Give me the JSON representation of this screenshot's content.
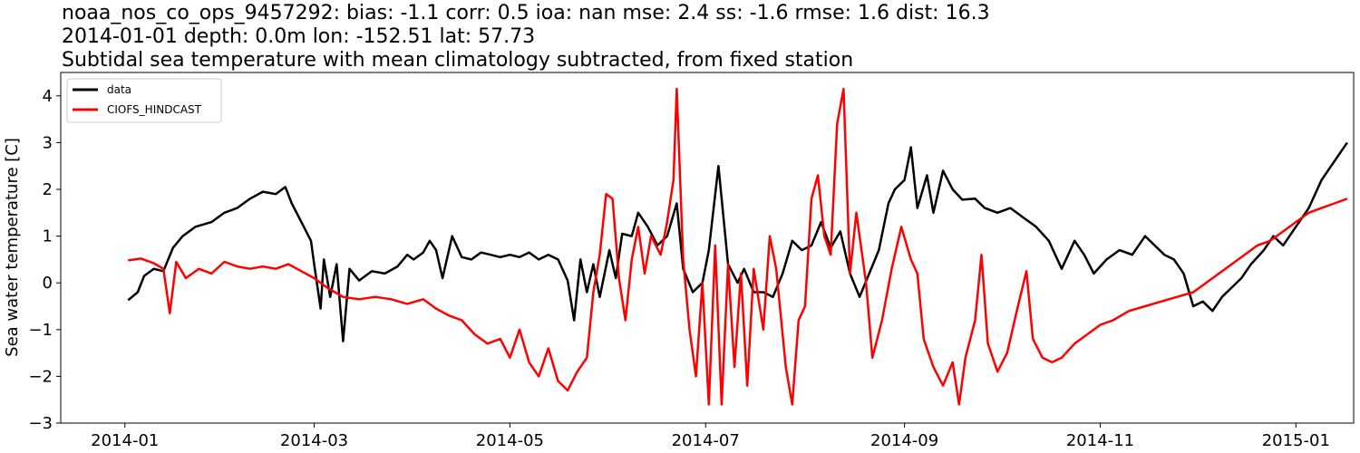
{
  "chart_data": {
    "type": "line",
    "title_lines": [
      "noaa_nos_co_ops_9457292: bias: -1.1  corr: 0.5  ioa: nan  mse: 2.4  ss: -1.6  rmse: 1.6  dist: 16.3",
      "2014-01-01 depth: 0.0m lon: -152.51 lat: 57.73",
      "Subtidal sea temperature with mean climatology subtracted, from fixed station"
    ],
    "xlabel": "",
    "ylabel": "Sea water temperature [C]",
    "x_ticks": [
      "2014-01",
      "2014-03",
      "2014-05",
      "2014-07",
      "2014-09",
      "2014-11",
      "2015-01"
    ],
    "y_ticks": [
      "−3",
      "−2",
      "−1",
      "0",
      "1",
      "2",
      "3",
      "4"
    ],
    "xlim": [
      "2013-12-12",
      "2015-01-19"
    ],
    "ylim": [
      -3.0,
      4.5
    ],
    "grid": false,
    "legend_position": "top-left",
    "series": [
      {
        "name": "data",
        "color": "#000000",
        "points": [
          [
            "2014-01-02",
            -0.37
          ],
          [
            "2014-01-05",
            -0.2
          ],
          [
            "2014-01-07",
            0.15
          ],
          [
            "2014-01-10",
            0.3
          ],
          [
            "2014-01-13",
            0.25
          ],
          [
            "2014-01-16",
            0.75
          ],
          [
            "2014-01-19",
            1.0
          ],
          [
            "2014-01-23",
            1.2
          ],
          [
            "2014-01-28",
            1.3
          ],
          [
            "2014-02-01",
            1.5
          ],
          [
            "2014-02-05",
            1.6
          ],
          [
            "2014-02-09",
            1.8
          ],
          [
            "2014-02-13",
            1.95
          ],
          [
            "2014-02-17",
            1.9
          ],
          [
            "2014-02-20",
            2.05
          ],
          [
            "2014-02-22",
            1.7
          ],
          [
            "2014-02-25",
            1.3
          ],
          [
            "2014-02-28",
            0.9
          ],
          [
            "2014-03-01",
            0.4
          ],
          [
            "2014-03-03",
            -0.55
          ],
          [
            "2014-03-04",
            0.5
          ],
          [
            "2014-03-06",
            -0.3
          ],
          [
            "2014-03-08",
            0.4
          ],
          [
            "2014-03-10",
            -1.25
          ],
          [
            "2014-03-12",
            0.3
          ],
          [
            "2014-03-15",
            0.05
          ],
          [
            "2014-03-19",
            0.25
          ],
          [
            "2014-03-23",
            0.2
          ],
          [
            "2014-03-27",
            0.35
          ],
          [
            "2014-03-30",
            0.6
          ],
          [
            "2014-04-01",
            0.5
          ],
          [
            "2014-04-04",
            0.65
          ],
          [
            "2014-04-06",
            0.9
          ],
          [
            "2014-04-08",
            0.7
          ],
          [
            "2014-04-10",
            0.1
          ],
          [
            "2014-04-13",
            1.0
          ],
          [
            "2014-04-16",
            0.55
          ],
          [
            "2014-04-19",
            0.5
          ],
          [
            "2014-04-22",
            0.65
          ],
          [
            "2014-04-25",
            0.6
          ],
          [
            "2014-04-28",
            0.55
          ],
          [
            "2014-05-01",
            0.6
          ],
          [
            "2014-05-04",
            0.55
          ],
          [
            "2014-05-07",
            0.65
          ],
          [
            "2014-05-10",
            0.5
          ],
          [
            "2014-05-13",
            0.6
          ],
          [
            "2014-05-16",
            0.5
          ],
          [
            "2014-05-19",
            0.05
          ],
          [
            "2014-05-21",
            -0.8
          ],
          [
            "2014-05-23",
            0.5
          ],
          [
            "2014-05-25",
            -0.2
          ],
          [
            "2014-05-27",
            0.4
          ],
          [
            "2014-05-29",
            -0.3
          ],
          [
            "2014-06-01",
            0.7
          ],
          [
            "2014-06-03",
            0.1
          ],
          [
            "2014-06-05",
            1.05
          ],
          [
            "2014-06-08",
            1.0
          ],
          [
            "2014-06-10",
            1.5
          ],
          [
            "2014-06-13",
            1.2
          ],
          [
            "2014-06-16",
            0.8
          ],
          [
            "2014-06-19",
            1.0
          ],
          [
            "2014-06-22",
            1.7
          ],
          [
            "2014-06-24",
            0.3
          ],
          [
            "2014-06-27",
            -0.2
          ],
          [
            "2014-06-30",
            0.0
          ],
          [
            "2014-07-02",
            0.7
          ],
          [
            "2014-07-05",
            2.5
          ],
          [
            "2014-07-08",
            0.4
          ],
          [
            "2014-07-11",
            0.0
          ],
          [
            "2014-07-13",
            0.3
          ],
          [
            "2014-07-16",
            -0.2
          ],
          [
            "2014-07-19",
            -0.2
          ],
          [
            "2014-07-22",
            -0.3
          ],
          [
            "2014-07-25",
            0.2
          ],
          [
            "2014-07-28",
            0.9
          ],
          [
            "2014-07-31",
            0.7
          ],
          [
            "2014-08-03",
            0.8
          ],
          [
            "2014-08-06",
            1.3
          ],
          [
            "2014-08-09",
            0.75
          ],
          [
            "2014-08-12",
            1.1
          ],
          [
            "2014-08-15",
            0.2
          ],
          [
            "2014-08-18",
            -0.3
          ],
          [
            "2014-08-21",
            0.2
          ],
          [
            "2014-08-24",
            0.7
          ],
          [
            "2014-08-27",
            1.7
          ],
          [
            "2014-08-29",
            2.0
          ],
          [
            "2014-09-01",
            2.2
          ],
          [
            "2014-09-03",
            2.9
          ],
          [
            "2014-09-05",
            1.6
          ],
          [
            "2014-09-08",
            2.3
          ],
          [
            "2014-09-10",
            1.5
          ],
          [
            "2014-09-13",
            2.4
          ],
          [
            "2014-09-16",
            2.0
          ],
          [
            "2014-09-19",
            1.78
          ],
          [
            "2014-09-23",
            1.8
          ],
          [
            "2014-09-26",
            1.6
          ],
          [
            "2014-09-30",
            1.5
          ],
          [
            "2014-10-04",
            1.6
          ],
          [
            "2014-10-08",
            1.4
          ],
          [
            "2014-10-12",
            1.2
          ],
          [
            "2014-10-16",
            0.9
          ],
          [
            "2014-10-20",
            0.3
          ],
          [
            "2014-10-24",
            0.9
          ],
          [
            "2014-10-27",
            0.6
          ],
          [
            "2014-10-30",
            0.2
          ],
          [
            "2014-11-03",
            0.5
          ],
          [
            "2014-11-07",
            0.7
          ],
          [
            "2014-11-11",
            0.6
          ],
          [
            "2014-11-15",
            1.0
          ],
          [
            "2014-11-18",
            0.8
          ],
          [
            "2014-11-21",
            0.6
          ],
          [
            "2014-11-24",
            0.5
          ],
          [
            "2014-11-27",
            0.2
          ],
          [
            "2014-11-30",
            -0.5
          ],
          [
            "2014-12-03",
            -0.4
          ],
          [
            "2014-12-06",
            -0.6
          ],
          [
            "2014-12-09",
            -0.3
          ],
          [
            "2014-12-12",
            -0.1
          ],
          [
            "2014-12-15",
            0.1
          ],
          [
            "2014-12-18",
            0.4
          ],
          [
            "2014-12-22",
            0.7
          ],
          [
            "2014-12-25",
            1.0
          ],
          [
            "2014-12-28",
            0.8
          ],
          [
            "2015-01-01",
            1.2
          ],
          [
            "2015-01-05",
            1.6
          ],
          [
            "2015-01-09",
            2.2
          ],
          [
            "2015-01-12",
            2.5
          ],
          [
            "2015-01-15",
            2.8
          ],
          [
            "2015-01-17",
            3.0
          ]
        ]
      },
      {
        "name": "CIOFS_HINDCAST",
        "color": "#ff0000",
        "points": [
          [
            "2014-01-02",
            0.48
          ],
          [
            "2014-01-06",
            0.52
          ],
          [
            "2014-01-10",
            0.42
          ],
          [
            "2014-01-13",
            0.3
          ],
          [
            "2014-01-15",
            -0.65
          ],
          [
            "2014-01-17",
            0.45
          ],
          [
            "2014-01-20",
            0.1
          ],
          [
            "2014-01-24",
            0.3
          ],
          [
            "2014-01-28",
            0.2
          ],
          [
            "2014-02-01",
            0.45
          ],
          [
            "2014-02-05",
            0.35
          ],
          [
            "2014-02-09",
            0.3
          ],
          [
            "2014-02-13",
            0.35
          ],
          [
            "2014-02-17",
            0.3
          ],
          [
            "2014-02-21",
            0.4
          ],
          [
            "2014-02-25",
            0.25
          ],
          [
            "2014-03-01",
            0.1
          ],
          [
            "2014-03-05",
            -0.1
          ],
          [
            "2014-03-10",
            -0.3
          ],
          [
            "2014-03-15",
            -0.35
          ],
          [
            "2014-03-20",
            -0.3
          ],
          [
            "2014-03-25",
            -0.35
          ],
          [
            "2014-03-30",
            -0.45
          ],
          [
            "2014-04-04",
            -0.35
          ],
          [
            "2014-04-08",
            -0.55
          ],
          [
            "2014-04-12",
            -0.7
          ],
          [
            "2014-04-16",
            -0.8
          ],
          [
            "2014-04-20",
            -1.1
          ],
          [
            "2014-04-24",
            -1.3
          ],
          [
            "2014-04-28",
            -1.2
          ],
          [
            "2014-05-01",
            -1.6
          ],
          [
            "2014-05-04",
            -1.0
          ],
          [
            "2014-05-07",
            -1.7
          ],
          [
            "2014-05-10",
            -2.0
          ],
          [
            "2014-05-13",
            -1.4
          ],
          [
            "2014-05-16",
            -2.1
          ],
          [
            "2014-05-19",
            -2.3
          ],
          [
            "2014-05-22",
            -1.9
          ],
          [
            "2014-05-25",
            -1.6
          ],
          [
            "2014-05-27",
            -0.2
          ],
          [
            "2014-05-29",
            0.6
          ],
          [
            "2014-05-31",
            1.9
          ],
          [
            "2014-06-02",
            1.8
          ],
          [
            "2014-06-04",
            0.1
          ],
          [
            "2014-06-06",
            -0.8
          ],
          [
            "2014-06-08",
            0.5
          ],
          [
            "2014-06-10",
            1.2
          ],
          [
            "2014-06-12",
            0.2
          ],
          [
            "2014-06-14",
            1.0
          ],
          [
            "2014-06-17",
            0.6
          ],
          [
            "2014-06-19",
            1.3
          ],
          [
            "2014-06-21",
            2.2
          ],
          [
            "2014-06-22",
            4.15
          ],
          [
            "2014-06-24",
            0.5
          ],
          [
            "2014-06-26",
            -1.0
          ],
          [
            "2014-06-28",
            -2.0
          ],
          [
            "2014-06-30",
            0.0
          ],
          [
            "2014-07-02",
            -2.6
          ],
          [
            "2014-07-04",
            0.8
          ],
          [
            "2014-07-06",
            -2.6
          ],
          [
            "2014-07-08",
            0.4
          ],
          [
            "2014-07-10",
            -1.8
          ],
          [
            "2014-07-12",
            0.2
          ],
          [
            "2014-07-14",
            -2.2
          ],
          [
            "2014-07-16",
            0.3
          ],
          [
            "2014-07-19",
            -1.0
          ],
          [
            "2014-07-21",
            1.0
          ],
          [
            "2014-07-23",
            0.3
          ],
          [
            "2014-07-26",
            -1.8
          ],
          [
            "2014-07-28",
            -2.6
          ],
          [
            "2014-07-30",
            -0.8
          ],
          [
            "2014-08-01",
            -0.5
          ],
          [
            "2014-08-03",
            1.8
          ],
          [
            "2014-08-05",
            2.3
          ],
          [
            "2014-08-07",
            1.0
          ],
          [
            "2014-08-09",
            0.6
          ],
          [
            "2014-08-11",
            3.4
          ],
          [
            "2014-08-13",
            4.15
          ],
          [
            "2014-08-15",
            0.2
          ],
          [
            "2014-08-17",
            1.5
          ],
          [
            "2014-08-20",
            0.0
          ],
          [
            "2014-08-22",
            -1.6
          ],
          [
            "2014-08-25",
            -0.8
          ],
          [
            "2014-08-28",
            0.3
          ],
          [
            "2014-08-31",
            1.2
          ],
          [
            "2014-09-03",
            0.5
          ],
          [
            "2014-09-05",
            0.2
          ],
          [
            "2014-09-07",
            -1.2
          ],
          [
            "2014-09-10",
            -1.8
          ],
          [
            "2014-09-13",
            -2.2
          ],
          [
            "2014-09-16",
            -1.7
          ],
          [
            "2014-09-18",
            -2.6
          ],
          [
            "2014-09-20",
            -1.6
          ],
          [
            "2014-09-23",
            -0.8
          ],
          [
            "2014-09-25",
            0.6
          ],
          [
            "2014-09-27",
            -1.3
          ],
          [
            "2014-09-30",
            -1.9
          ],
          [
            "2014-10-03",
            -1.5
          ],
          [
            "2014-10-06",
            -0.6
          ],
          [
            "2014-10-09",
            0.25
          ],
          [
            "2014-10-11",
            -1.2
          ],
          [
            "2014-10-14",
            -1.6
          ],
          [
            "2014-10-17",
            -1.7
          ],
          [
            "2014-10-20",
            -1.6
          ],
          [
            "2014-10-24",
            -1.3
          ],
          [
            "2014-10-28",
            -1.1
          ],
          [
            "2014-11-01",
            -0.9
          ],
          [
            "2014-11-05",
            -0.8
          ],
          [
            "2014-11-10",
            -0.6
          ],
          [
            "2014-11-15",
            -0.5
          ],
          [
            "2014-11-20",
            -0.4
          ],
          [
            "2014-11-25",
            -0.3
          ],
          [
            "2014-11-30",
            -0.2
          ],
          [
            "2014-12-04",
            0.0
          ],
          [
            "2014-12-08",
            0.2
          ],
          [
            "2014-12-12",
            0.4
          ],
          [
            "2014-12-16",
            0.6
          ],
          [
            "2014-12-20",
            0.8
          ],
          [
            "2014-12-24",
            0.9
          ],
          [
            "2014-12-28",
            1.1
          ],
          [
            "2015-01-01",
            1.3
          ],
          [
            "2015-01-05",
            1.5
          ],
          [
            "2015-01-09",
            1.6
          ],
          [
            "2015-01-13",
            1.7
          ],
          [
            "2015-01-17",
            1.8
          ]
        ]
      }
    ]
  }
}
